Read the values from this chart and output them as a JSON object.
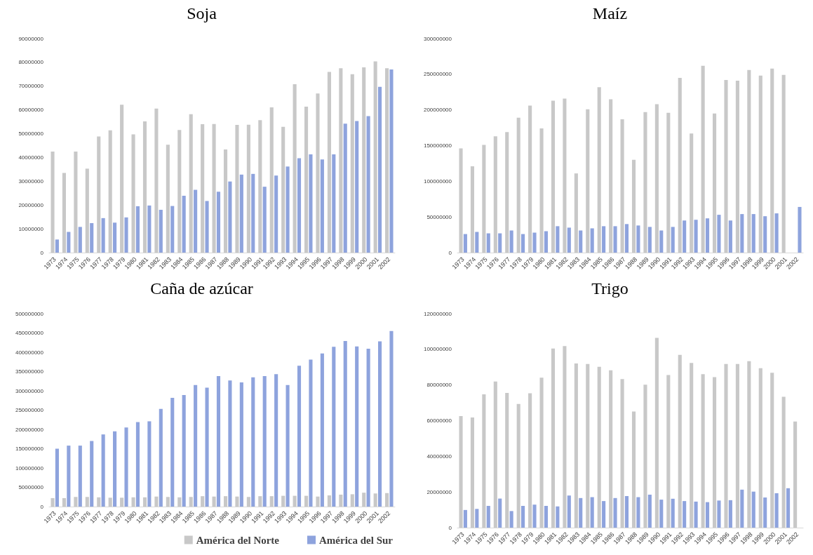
{
  "chart_data": [
    {
      "type": "bar",
      "title": "Soja",
      "categories": [
        "1973",
        "1974",
        "1975",
        "1976",
        "1977",
        "1978",
        "1979",
        "1980",
        "1981",
        "1982",
        "1983",
        "1984",
        "1985",
        "1986",
        "1987",
        "1988",
        "1989",
        "1990",
        "1991",
        "1992",
        "1993",
        "1994",
        "1995",
        "1996",
        "1997",
        "1998",
        "1999",
        "2000",
        "2001",
        "2002"
      ],
      "series": [
        {
          "color": "#c8c8c8",
          "values": [
            42500000,
            33500000,
            42500000,
            35300000,
            48800000,
            51400000,
            62200000,
            49700000,
            55200000,
            60600000,
            45400000,
            51600000,
            58200000,
            54000000,
            54100000,
            43400000,
            53700000,
            53800000,
            55700000,
            61100000,
            52900000,
            70800000,
            61400000,
            66900000,
            76000000,
            77500000,
            75000000,
            77900000,
            80400000,
            77500000
          ]
        },
        {
          "color": "#8ea3dd",
          "values": [
            5500000,
            8700000,
            10800000,
            12400000,
            14500000,
            12600000,
            14800000,
            19500000,
            19800000,
            18000000,
            19600000,
            23900000,
            26400000,
            21700000,
            25600000,
            29900000,
            32800000,
            33100000,
            27700000,
            32400000,
            36200000,
            39700000,
            41300000,
            39200000,
            41300000,
            54200000,
            55300000,
            57400000,
            69700000,
            77000000
          ]
        }
      ],
      "ylim": [
        0,
        90000000
      ],
      "yticks": [
        0,
        10000000,
        20000000,
        30000000,
        40000000,
        50000000,
        60000000,
        70000000,
        80000000,
        90000000
      ],
      "grid": false,
      "legend": false
    },
    {
      "type": "bar",
      "title": "Maíz",
      "categories": [
        "1973",
        "1974",
        "1975",
        "1976",
        "1977",
        "1978",
        "1979",
        "1980",
        "1981",
        "1982",
        "1983",
        "1984",
        "1985",
        "1986",
        "1987",
        "1988",
        "1989",
        "1990",
        "1991",
        "1992",
        "1993",
        "1994",
        "1995",
        "1996",
        "1997",
        "1998",
        "1999",
        "2000",
        "2001",
        "2002"
      ],
      "series": [
        {
          "color": "#c8c8c8",
          "values": [
            146000000,
            121000000,
            151000000,
            163000000,
            169000000,
            189000000,
            206000000,
            174000000,
            213000000,
            216000000,
            111000000,
            201000000,
            232000000,
            215000000,
            187000000,
            130000000,
            197000000,
            208000000,
            196000000,
            245000000,
            167000000,
            262000000,
            195000000,
            242000000,
            241000000,
            256000000,
            248000000,
            258000000,
            249000000,
            null
          ]
        },
        {
          "color": "#8ea3dd",
          "values": [
            26000000,
            29000000,
            27000000,
            27000000,
            31000000,
            26000000,
            28000000,
            30000000,
            37000000,
            35000000,
            31000000,
            34000000,
            37000000,
            37000000,
            40000000,
            38000000,
            36000000,
            31000000,
            36000000,
            45000000,
            46000000,
            48000000,
            53000000,
            45000000,
            54000000,
            54000000,
            51000000,
            55000000,
            null,
            64000000
          ]
        }
      ],
      "ylim": [
        0,
        300000000
      ],
      "yticks": [
        0,
        50000000,
        100000000,
        150000000,
        200000000,
        250000000,
        300000000
      ],
      "grid": false,
      "legend": false
    },
    {
      "type": "bar",
      "title": "Caña de azúcar",
      "categories": [
        "1973",
        "1974",
        "1975",
        "1976",
        "1977",
        "1978",
        "1979",
        "1980",
        "1981",
        "1982",
        "1983",
        "1984",
        "1985",
        "1986",
        "1987",
        "1988",
        "1989",
        "1990",
        "1991",
        "1992",
        "1993",
        "1994",
        "1995",
        "1996",
        "1997",
        "1998",
        "1999",
        "2000",
        "2001",
        "2002"
      ],
      "series": [
        {
          "name": "América del Norte",
          "color": "#c8c8c8",
          "values": [
            22000000,
            22000000,
            25000000,
            25000000,
            24000000,
            23000000,
            23000000,
            24000000,
            24000000,
            26000000,
            25000000,
            24000000,
            25000000,
            27000000,
            26000000,
            27000000,
            26000000,
            25000000,
            27000000,
            27000000,
            28000000,
            28000000,
            28000000,
            26000000,
            29000000,
            31000000,
            32000000,
            36000000,
            34000000,
            35000000
          ]
        },
        {
          "name": "América del Sur",
          "color": "#8ea3dd",
          "values": [
            150000000,
            158000000,
            158000000,
            170000000,
            187000000,
            195000000,
            205000000,
            219000000,
            221000000,
            253000000,
            282000000,
            289000000,
            315000000,
            308000000,
            338000000,
            327000000,
            322000000,
            335000000,
            338000000,
            343000000,
            315000000,
            365000000,
            381000000,
            397000000,
            414000000,
            429000000,
            415000000,
            409000000,
            428000000,
            455000000
          ]
        }
      ],
      "ylim": [
        0,
        500000000
      ],
      "yticks": [
        0,
        50000000,
        100000000,
        150000000,
        200000000,
        250000000,
        300000000,
        350000000,
        400000000,
        450000000,
        500000000
      ],
      "grid": false,
      "legend": "bottom right"
    },
    {
      "type": "bar",
      "title": "Trigo",
      "categories": [
        "1973",
        "1974",
        "1975",
        "1976",
        "1977",
        "1978",
        "1979",
        "1980",
        "1981",
        "1982",
        "1983",
        "1984",
        "1985",
        "1986",
        "1987",
        "1988",
        "1989",
        "1990",
        "1991",
        "1992",
        "1993",
        "1994",
        "1995",
        "1996",
        "1997",
        "1998",
        "1999",
        "2000",
        "2001",
        "2002"
      ],
      "series": [
        {
          "color": "#c8c8c8",
          "values": [
            62600000,
            61800000,
            74800000,
            81900000,
            75500000,
            69300000,
            75300000,
            84100000,
            100400000,
            101800000,
            92100000,
            91800000,
            90200000,
            88200000,
            83300000,
            65100000,
            80200000,
            106400000,
            85600000,
            96900000,
            92400000,
            86100000,
            84400000,
            91800000,
            91800000,
            93300000,
            89400000,
            86900000,
            73400000,
            59500000
          ]
        },
        {
          "color": "#8ea3dd",
          "values": [
            9900000,
            10500000,
            12200000,
            16300000,
            9300000,
            12200000,
            12900000,
            12200000,
            11900000,
            18000000,
            16600000,
            17100000,
            14900000,
            16600000,
            17700000,
            17100000,
            18500000,
            15700000,
            16200000,
            14900000,
            14600000,
            14300000,
            15200000,
            15400000,
            21300000,
            20200000,
            16900000,
            19300000,
            22100000,
            null
          ]
        }
      ],
      "ylim": [
        0,
        120000000
      ],
      "yticks": [
        0,
        20000000,
        40000000,
        60000000,
        80000000,
        100000000,
        120000000
      ],
      "grid": false,
      "legend": false
    }
  ]
}
